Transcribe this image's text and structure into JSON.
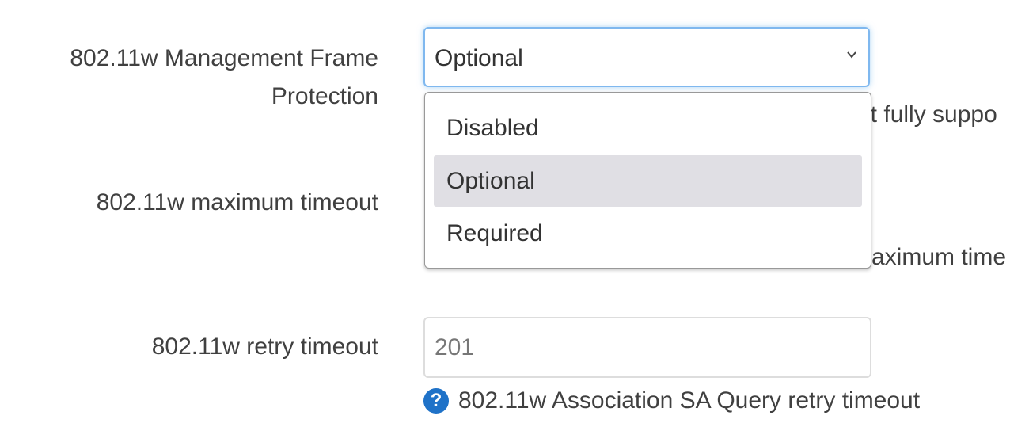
{
  "fields": {
    "mfp": {
      "label": "802.11w Management Frame Protection",
      "label_line1": "802.11w Management Frame",
      "label_line2": "Protection",
      "selected": "Optional",
      "options": [
        "Disabled",
        "Optional",
        "Required"
      ],
      "highlighted_option": "Optional",
      "obscured_help_fragment": "ot fully suppo"
    },
    "max_timeout": {
      "label": "802.11w maximum timeout",
      "obscured_help_fragment": "aximum time"
    },
    "retry_timeout": {
      "label": "802.11w retry timeout",
      "value": "201",
      "help": "802.11w Association SA Query retry timeout"
    }
  },
  "colors": {
    "focus_border": "#7fb8ef",
    "help_icon": "#1f72c8",
    "option_highlight": "#e0dfe4"
  },
  "icons": {
    "select": "chevron-down-icon",
    "help": "question-circle-icon"
  }
}
